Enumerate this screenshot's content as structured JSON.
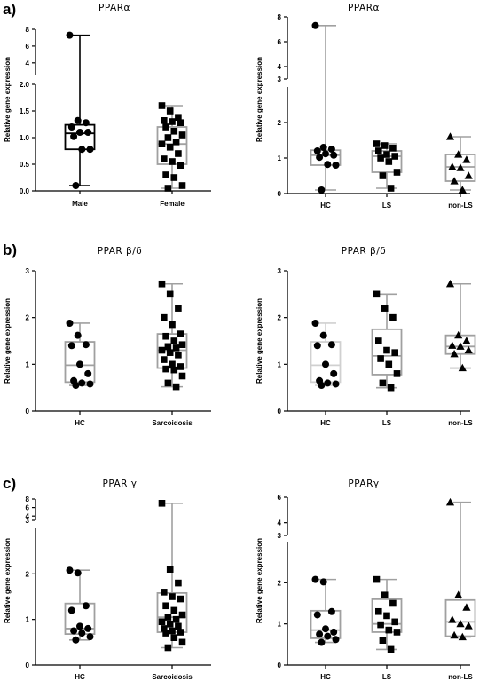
{
  "panel_labels": [
    "a)",
    "b)",
    "c)"
  ],
  "chart_data": [
    {
      "type": "box",
      "title": "PPARα",
      "ylabel": "Relative gene expression",
      "ylim": [
        0,
        8
      ],
      "axis_break": [
        2,
        3
      ],
      "yticks": [
        "0.0",
        "0.5",
        "1.0",
        "1.5",
        "2.0",
        "4",
        "6",
        "8"
      ],
      "series": [
        {
          "category": "Male",
          "marker": "circle",
          "box_color": "#000000",
          "min": 0.1,
          "q1": 0.78,
          "median": 1.08,
          "q3": 1.24,
          "max": 7.3,
          "points": [
            7.3,
            1.32,
            1.28,
            1.2,
            1.1,
            1.1,
            1.02,
            0.78,
            0.78,
            0.1
          ]
        },
        {
          "category": "Female",
          "marker": "square",
          "box_color": "#a0a0a0",
          "min": 0.05,
          "q1": 0.5,
          "median": 0.88,
          "q3": 1.2,
          "max": 1.6,
          "points": [
            1.6,
            1.5,
            1.38,
            1.32,
            1.3,
            1.28,
            1.2,
            1.12,
            1.05,
            1.0,
            0.92,
            0.88,
            0.82,
            0.7,
            0.6,
            0.55,
            0.48,
            0.3,
            0.25,
            0.1,
            0.05
          ]
        }
      ]
    },
    {
      "type": "box",
      "title": "PPARα",
      "ylabel": "Relative gene expression",
      "ylim": [
        0,
        8
      ],
      "axis_break": [
        3,
        4
      ],
      "yticks": [
        "0",
        "1",
        "2",
        "3",
        "4",
        "6",
        "8"
      ],
      "series": [
        {
          "category": "HC",
          "marker": "circle",
          "box_color": "#a0a0a0",
          "min": 0.1,
          "q1": 0.8,
          "median": 1.08,
          "q3": 1.22,
          "max": 7.3,
          "points": [
            7.3,
            1.3,
            1.25,
            1.2,
            1.12,
            1.08,
            1.02,
            0.82,
            0.8,
            0.1
          ]
        },
        {
          "category": "LS",
          "marker": "square",
          "box_color": "#a0a0a0",
          "min": 0.15,
          "q1": 0.6,
          "median": 1.05,
          "q3": 1.2,
          "max": 1.4,
          "points": [
            1.4,
            1.35,
            1.28,
            1.2,
            1.1,
            1.05,
            1.0,
            0.9,
            0.6,
            0.5,
            0.15
          ]
        },
        {
          "category": "non-LS",
          "marker": "triangle",
          "box_color": "#a0a0a0",
          "min": 0.1,
          "q1": 0.35,
          "median": 0.75,
          "q3": 1.1,
          "max": 1.6,
          "points": [
            1.6,
            1.1,
            0.95,
            0.75,
            0.72,
            0.5,
            0.35,
            0.1
          ]
        }
      ]
    },
    {
      "type": "box",
      "title": "PPAR β/δ",
      "ylabel": "Relative gene expression",
      "ylim": [
        0,
        3
      ],
      "yticks": [
        "0",
        "1",
        "2",
        "3"
      ],
      "series": [
        {
          "category": "HC",
          "marker": "circle",
          "box_color": "#a0a0a0",
          "min": 0.55,
          "q1": 0.62,
          "median": 0.98,
          "q3": 1.48,
          "max": 1.88,
          "points": [
            1.88,
            1.62,
            1.42,
            1.4,
            1.0,
            0.8,
            0.65,
            0.6,
            0.58,
            0.55
          ]
        },
        {
          "category": "Sarcoidosis",
          "marker": "square",
          "box_color": "#a0a0a0",
          "min": 0.52,
          "q1": 0.92,
          "median": 1.3,
          "q3": 1.65,
          "max": 2.72,
          "points": [
            2.72,
            2.5,
            2.2,
            2.0,
            1.85,
            1.65,
            1.6,
            1.5,
            1.42,
            1.38,
            1.35,
            1.3,
            1.25,
            1.2,
            1.1,
            1.0,
            0.95,
            0.9,
            0.88,
            0.75,
            0.6,
            0.52
          ]
        }
      ]
    },
    {
      "type": "box",
      "title": "PPAR β/δ",
      "ylabel": "Relative gene expression",
      "ylim": [
        0,
        3
      ],
      "yticks": [
        "0",
        "1",
        "2",
        "3"
      ],
      "series": [
        {
          "category": "HC",
          "marker": "circle",
          "box_color": "#d0d0d0",
          "min": 0.55,
          "q1": 0.62,
          "median": 0.98,
          "q3": 1.48,
          "max": 1.88,
          "points": [
            1.88,
            1.62,
            1.42,
            1.4,
            1.0,
            0.8,
            0.65,
            0.6,
            0.58,
            0.55
          ]
        },
        {
          "category": "LS",
          "marker": "square",
          "box_color": "#a0a0a0",
          "min": 0.5,
          "q1": 0.78,
          "median": 1.18,
          "q3": 1.75,
          "max": 2.5,
          "points": [
            2.5,
            2.2,
            2.0,
            1.5,
            1.3,
            1.25,
            1.12,
            1.0,
            0.8,
            0.6,
            0.5
          ]
        },
        {
          "category": "non-LS",
          "marker": "triangle",
          "box_color": "#a0a0a0",
          "min": 0.92,
          "q1": 1.22,
          "median": 1.38,
          "q3": 1.62,
          "max": 2.72,
          "points": [
            2.72,
            1.62,
            1.5,
            1.4,
            1.38,
            1.3,
            1.22,
            0.92
          ]
        }
      ]
    },
    {
      "type": "box",
      "title": "PPAR γ",
      "ylabel": "Relative gene expression",
      "ylim": [
        0,
        8
      ],
      "axis_break": [
        3,
        4
      ],
      "yticks": [
        "0",
        "1",
        "2",
        "3",
        "4",
        "6",
        "8"
      ],
      "series": [
        {
          "category": "HC",
          "marker": "circle",
          "box_color": "#a0a0a0",
          "min": 0.55,
          "q1": 0.68,
          "median": 0.8,
          "q3": 1.35,
          "max": 2.08,
          "points": [
            2.08,
            2.02,
            1.3,
            1.2,
            0.85,
            0.8,
            0.75,
            0.7,
            0.62,
            0.55
          ]
        },
        {
          "category": "Sarcoidosis",
          "marker": "square",
          "box_color": "#a0a0a0",
          "min": 0.38,
          "q1": 0.72,
          "median": 1.05,
          "q3": 1.58,
          "max": 7.0,
          "points": [
            7.0,
            2.1,
            1.8,
            1.6,
            1.5,
            1.45,
            1.3,
            1.2,
            1.1,
            1.05,
            1.0,
            0.95,
            0.9,
            0.85,
            0.8,
            0.75,
            0.72,
            0.7,
            0.6,
            0.5,
            0.38
          ]
        }
      ]
    },
    {
      "type": "box",
      "title": "PPARγ",
      "ylabel": "Relative gene expression",
      "ylim": [
        0,
        6
      ],
      "axis_break": [
        3,
        4
      ],
      "yticks": [
        "0",
        "1",
        "2",
        "3",
        "4",
        "6"
      ],
      "series": [
        {
          "category": "HC",
          "marker": "circle",
          "box_color": "#a0a0a0",
          "min": 0.55,
          "q1": 0.65,
          "median": 0.85,
          "q3": 1.32,
          "max": 2.08,
          "points": [
            2.08,
            2.02,
            1.3,
            1.22,
            0.88,
            0.8,
            0.75,
            0.7,
            0.62,
            0.55
          ]
        },
        {
          "category": "LS",
          "marker": "square",
          "box_color": "#a0a0a0",
          "min": 0.38,
          "q1": 0.8,
          "median": 1.0,
          "q3": 1.6,
          "max": 2.08,
          "points": [
            2.08,
            1.7,
            1.5,
            1.3,
            1.2,
            1.05,
            0.98,
            0.85,
            0.8,
            0.6,
            0.38
          ]
        },
        {
          "category": "non-LS",
          "marker": "triangle",
          "box_color": "#a0a0a0",
          "min": 0.68,
          "q1": 0.7,
          "median": 1.05,
          "q3": 1.58,
          "max": 5.6,
          "points": [
            5.6,
            1.7,
            1.4,
            1.1,
            1.0,
            0.95,
            0.72,
            0.68
          ]
        }
      ]
    }
  ]
}
